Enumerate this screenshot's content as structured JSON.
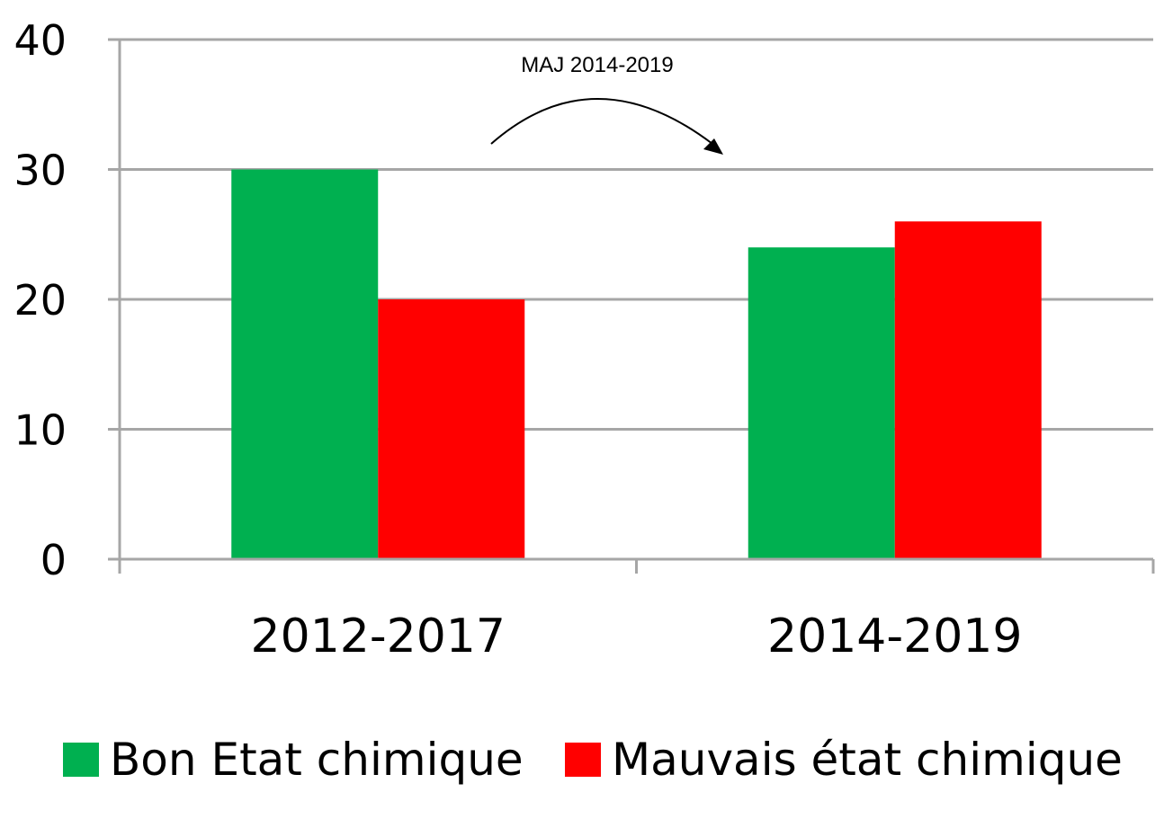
{
  "chart_data": {
    "type": "bar",
    "categories": [
      "2012-2017",
      "2014-2019"
    ],
    "series": [
      {
        "name": "Bon Etat chimique",
        "values": [
          30,
          24
        ],
        "color": "#00b050"
      },
      {
        "name": "Mauvais état chimique",
        "values": [
          20,
          26
        ],
        "color": "#ff0000"
      }
    ],
    "title": "",
    "xlabel": "",
    "ylabel": "",
    "ylim": [
      0,
      40
    ],
    "yticks": [
      "0",
      "10",
      "20",
      "30",
      "40"
    ],
    "grid": true,
    "legend_position": "bottom",
    "annotation": "MAJ 2014-2019"
  }
}
